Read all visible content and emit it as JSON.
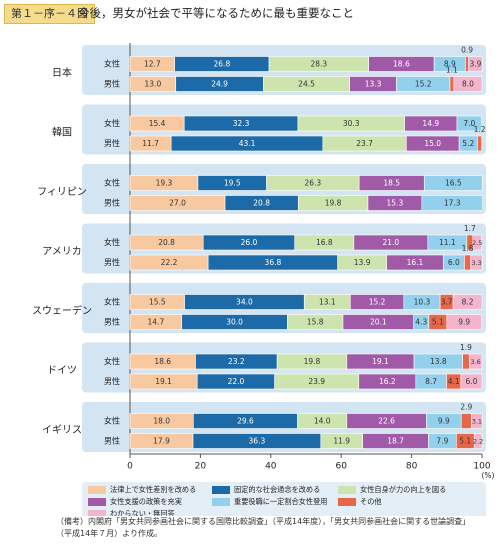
{
  "figure": {
    "label": "第１－序－４図",
    "title": "今後，男女が社会で平等になるために最も重要なこと",
    "notes": [
      "（備考）内閣府「男女共同参画社会に関する国際比較調査」（平成14年度），「男女共同参画社会に関する世論調査」",
      "（平成14年７月）より作成。"
    ]
  },
  "chart_data": {
    "type": "bar",
    "orientation": "horizontal",
    "stacked": true,
    "xlabel": "",
    "unit": "(%)",
    "xlim": [
      0,
      100
    ],
    "xticks": [
      0,
      20,
      40,
      60,
      80,
      100
    ],
    "grid": false,
    "legend_position": "bottom",
    "series": [
      {
        "name": "法律上で女性差別を改める",
        "color": "#f8c9a0"
      },
      {
        "name": "固定的な社会通念を改める",
        "color": "#1d6aa8"
      },
      {
        "name": "女性自身が力の向上を図る",
        "color": "#cde4ae"
      },
      {
        "name": "女性支援の政策を充実",
        "color": "#a15aa8"
      },
      {
        "name": "重要役職に一定割合女性登用",
        "color": "#92d0ee"
      },
      {
        "name": "その他",
        "color": "#e8664a"
      },
      {
        "name": "わからない・無回答",
        "color": "#f4b4cc"
      }
    ],
    "value_label_color": "#333333",
    "value_label_color_dark": "#ffffff",
    "group_bg": "#d3e4f2",
    "countries": [
      {
        "name": "日本",
        "rows": [
          {
            "label": "女性",
            "values": [
              12.7,
              26.8,
              28.3,
              18.6,
              8.9,
              0.9,
              3.9
            ],
            "labels": [
              "12.7",
              "26.8",
              "28.3",
              "18.6",
              "8.9",
              "0.9",
              "3.9"
            ]
          },
          {
            "label": "男性",
            "values": [
              13.0,
              24.9,
              24.5,
              13.3,
              15.2,
              1.1,
              8.0
            ],
            "labels": [
              "13.0",
              "24.9",
              "24.5",
              "13.3",
              "15.2",
              "1.1",
              "8.0"
            ]
          }
        ]
      },
      {
        "name": "韓国",
        "rows": [
          {
            "label": "女性",
            "values": [
              15.4,
              32.3,
              30.3,
              14.9,
              7.0,
              0,
              0
            ],
            "labels": [
              "15.4",
              "32.3",
              "30.3",
              "14.9",
              "7.0",
              "",
              ""
            ]
          },
          {
            "label": "男性",
            "values": [
              11.7,
              43.1,
              23.7,
              15.0,
              5.2,
              1.2,
              0
            ],
            "labels": [
              "11.7",
              "43.1",
              "23.7",
              "15.0",
              "5.2",
              "1.2",
              ""
            ]
          }
        ]
      },
      {
        "name": "フィリピン",
        "rows": [
          {
            "label": "女性",
            "values": [
              19.3,
              19.5,
              26.3,
              18.5,
              16.5,
              0,
              0
            ],
            "labels": [
              "19.3",
              "19.5",
              "26.3",
              "18.5",
              "16.5",
              "",
              ""
            ]
          },
          {
            "label": "男性",
            "values": [
              27.0,
              20.8,
              19.8,
              15.3,
              17.3,
              0,
              0
            ],
            "labels": [
              "27.0",
              "20.8",
              "19.8",
              "15.3",
              "17.3",
              "",
              ""
            ]
          }
        ]
      },
      {
        "name": "アメリカ",
        "rows": [
          {
            "label": "女性",
            "values": [
              20.8,
              26.0,
              16.8,
              21.0,
              11.1,
              1.7,
              2.5
            ],
            "labels": [
              "20.8",
              "26.0",
              "16.8",
              "21.0",
              "11.1",
              "1.7",
              "2.5"
            ]
          },
          {
            "label": "男性",
            "values": [
              22.2,
              36.8,
              13.9,
              16.1,
              6.0,
              1.8,
              3.3
            ],
            "labels": [
              "22.2",
              "36.8",
              "13.9",
              "16.1",
              "6.0",
              "1.8",
              "3.3"
            ]
          }
        ]
      },
      {
        "name": "スウェーデン",
        "rows": [
          {
            "label": "女性",
            "values": [
              15.5,
              34.0,
              13.1,
              15.2,
              10.3,
              3.7,
              8.2
            ],
            "labels": [
              "15.5",
              "34.0",
              "13.1",
              "15.2",
              "10.3",
              "3.7",
              "8.2"
            ]
          },
          {
            "label": "男性",
            "values": [
              14.7,
              30.0,
              15.8,
              20.1,
              4.3,
              5.1,
              9.9
            ],
            "labels": [
              "14.7",
              "30.0",
              "15.8",
              "20.1",
              "4.3",
              "5.1",
              "9.9"
            ]
          }
        ]
      },
      {
        "name": "ドイツ",
        "rows": [
          {
            "label": "女性",
            "values": [
              18.6,
              23.2,
              19.8,
              19.1,
              13.8,
              1.9,
              3.6
            ],
            "labels": [
              "18.6",
              "23.2",
              "19.8",
              "19.1",
              "13.8",
              "1.9",
              "3.6"
            ]
          },
          {
            "label": "男性",
            "values": [
              19.1,
              22.0,
              23.9,
              16.2,
              8.7,
              4.1,
              6.0
            ],
            "labels": [
              "19.1",
              "22.0",
              "23.9",
              "16.2",
              "8.7",
              "4.1",
              "6.0"
            ]
          }
        ]
      },
      {
        "name": "イギリス",
        "rows": [
          {
            "label": "女性",
            "values": [
              18.0,
              29.6,
              14.0,
              22.6,
              9.9,
              2.9,
              3.1
            ],
            "labels": [
              "18.0",
              "29.6",
              "14.0",
              "22.6",
              "9.9",
              "2.9",
              "3.1"
            ]
          },
          {
            "label": "男性",
            "values": [
              17.9,
              36.3,
              11.9,
              18.7,
              7.9,
              5.1,
              2.2
            ],
            "labels": [
              "17.9",
              "36.3",
              "11.9",
              "18.7",
              "7.9",
              "5.1",
              "2.2"
            ]
          }
        ]
      }
    ]
  }
}
